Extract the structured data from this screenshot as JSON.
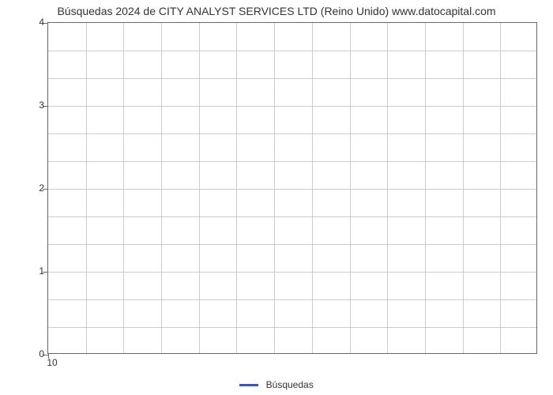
{
  "chart": {
    "type": "line",
    "title": "Búsquedas 2024 de CITY ANALYST SERVICES LTD (Reino Unido) www.datocapital.com",
    "title_fontsize": 14,
    "background_color": "#ffffff",
    "plot_border_color": "#666666",
    "grid_color": "#cccccc",
    "text_color": "#333333",
    "y": {
      "min": 0,
      "max": 4,
      "major_ticks": [
        0,
        1,
        2,
        3,
        4
      ],
      "minor_steps": 3,
      "label_fontsize": 12
    },
    "x": {
      "ticks": [
        "10"
      ],
      "vertical_gridlines": 13,
      "label_fontsize": 12
    },
    "series": [
      {
        "name": "Búsquedas",
        "color": "#3355cc",
        "line_width": 3
      }
    ],
    "legend": {
      "position": "bottom-center",
      "fontsize": 12
    }
  }
}
